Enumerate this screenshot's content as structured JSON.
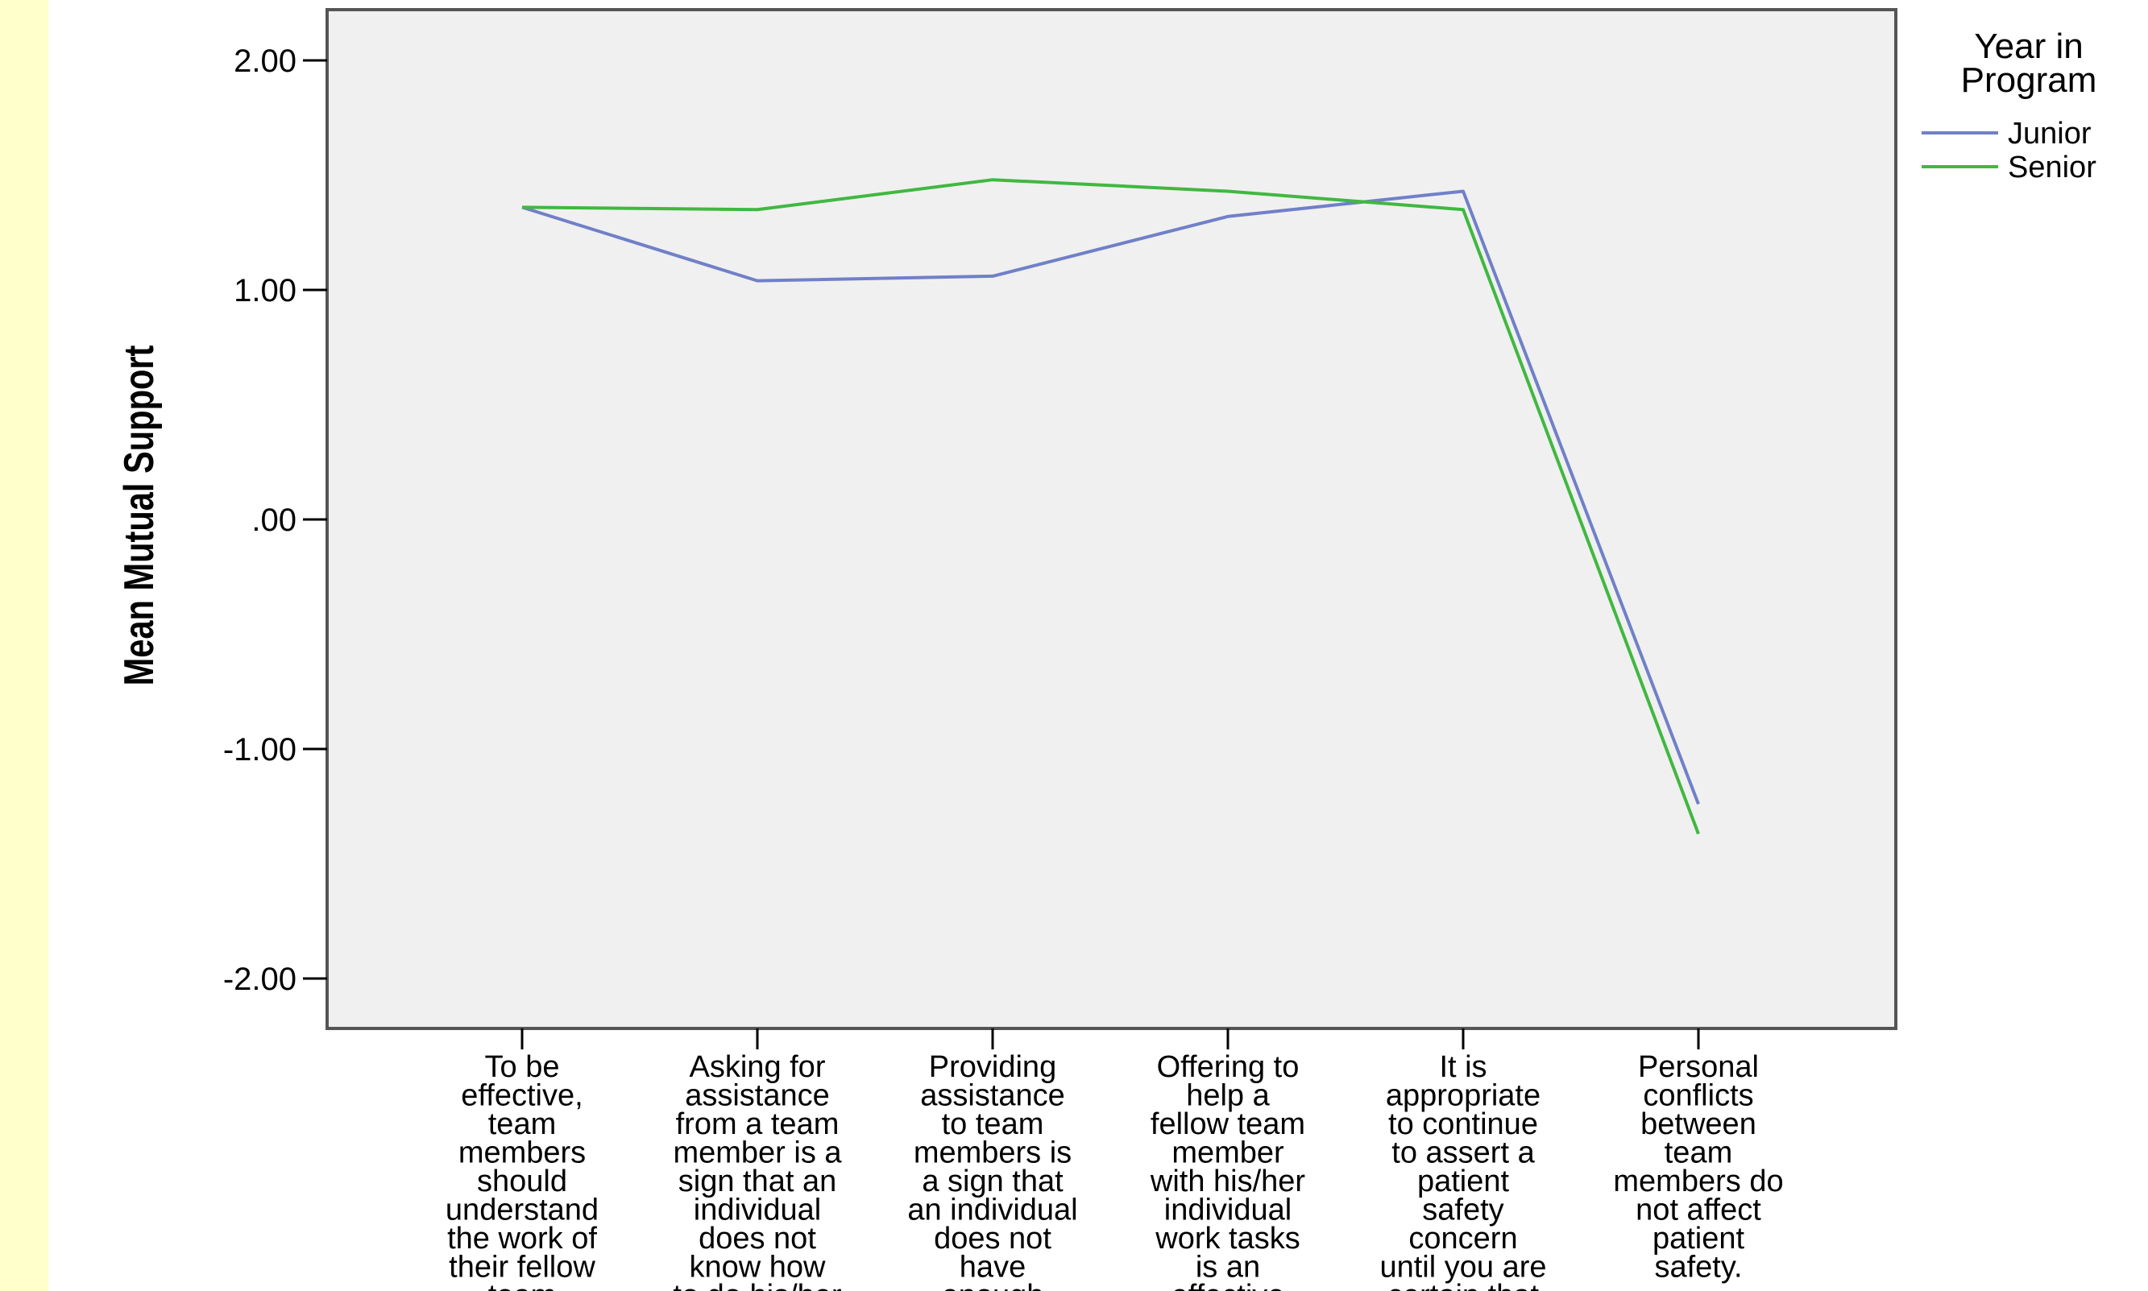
{
  "chart_data": {
    "type": "line",
    "ylabel": "Mean Mutual Support",
    "ylim": [
      -2.2,
      2.2
    ],
    "yticks": [
      2.0,
      1.0,
      0.0,
      -1.0,
      -2.0
    ],
    "ytick_labels": [
      "2.00",
      "1.00",
      ".00",
      "-1.00",
      "-2.00"
    ],
    "plot_background": "#f0f0f0",
    "grid": false,
    "legend": {
      "title_lines": [
        "Year in",
        "Program"
      ],
      "placement": "right"
    },
    "categories": [
      [
        "To be",
        "effective,",
        "team",
        "members",
        "should",
        "understand",
        "the work of",
        "their fellow",
        "team"
      ],
      [
        "Asking for",
        "assistance",
        "from a team",
        "member is a",
        "sign that an",
        "individual",
        "does not",
        "know how",
        "to do his/her"
      ],
      [
        "Providing",
        "assistance",
        "to team",
        "members is",
        "a sign that",
        "an individual",
        "does not",
        "have",
        "enough"
      ],
      [
        "Offering to",
        "help a",
        "fellow team",
        "member",
        "with his/her",
        "individual",
        "work tasks",
        "is an",
        "effective"
      ],
      [
        "It is",
        "appropriate",
        "to continue",
        "to assert a",
        "patient",
        "safety",
        "concern",
        "until you are",
        "certain that"
      ],
      [
        "Personal",
        "conflicts",
        "between",
        "team",
        "members do",
        "not affect",
        "patient",
        "safety."
      ]
    ],
    "series": [
      {
        "name": "Junior",
        "color": "#7080c8",
        "values": [
          1.36,
          1.04,
          1.06,
          1.32,
          1.43,
          -1.24
        ]
      },
      {
        "name": "Senior",
        "color": "#40b840",
        "values": [
          1.36,
          1.35,
          1.48,
          1.43,
          1.35,
          -1.37
        ]
      }
    ]
  }
}
